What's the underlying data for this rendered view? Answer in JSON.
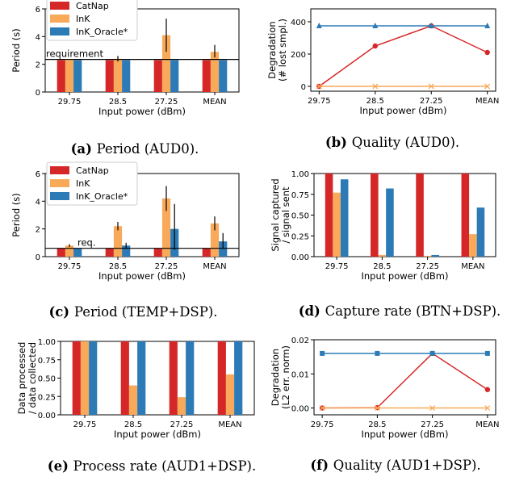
{
  "colors": {
    "catnap": "#d62728",
    "ink": "#f8a95a",
    "ink_oracle": "#2c7bb6",
    "axis": "#000000"
  },
  "chart_data": [
    {
      "id": "a",
      "type": "bar",
      "caption_label": "(a)",
      "caption_text": "Period (AUD0).",
      "categories": [
        "29.75",
        "28.5",
        "27.25",
        "MEAN"
      ],
      "xlabel": "Input power (dBm)",
      "ylabel": "Period (s)",
      "ylim": [
        0,
        6
      ],
      "yticks": [
        "0",
        "2",
        "4",
        "6"
      ],
      "series": [
        {
          "name": "CatNap",
          "key": "catnap",
          "values": [
            2.3,
            2.3,
            2.3,
            2.3
          ]
        },
        {
          "name": "InK",
          "key": "ink",
          "values": [
            2.3,
            2.4,
            4.1,
            2.9
          ],
          "err_low": [
            null,
            2.2,
            2.9,
            2.5
          ],
          "err_high": [
            null,
            2.6,
            5.3,
            3.4
          ]
        },
        {
          "name": "InK_Oracle*",
          "key": "ink_oracle",
          "values": [
            2.3,
            2.3,
            2.3,
            2.3
          ]
        }
      ],
      "hline": {
        "y": 2.35,
        "label": "requirement"
      },
      "legend": "top-left"
    },
    {
      "id": "b",
      "type": "line",
      "caption_label": "(b)",
      "caption_text": "Quality (AUD0).",
      "categories": [
        "29.75",
        "28.5",
        "27.25",
        "MEAN"
      ],
      "xlabel": "Input power (dBm)",
      "ylabel": "Degradation\n(# lost smpl.)",
      "ylim": [
        -30,
        480
      ],
      "yticks": [
        "0",
        "200",
        "400"
      ],
      "ytick_values": [
        0,
        200,
        400
      ],
      "series": [
        {
          "key": "catnap",
          "marker": "circle",
          "values": [
            0,
            250,
            375,
            210
          ]
        },
        {
          "key": "ink",
          "marker": "x",
          "values": [
            0,
            0,
            0,
            0
          ]
        },
        {
          "key": "ink_oracle",
          "marker": "triangle",
          "values": [
            375,
            375,
            375,
            375
          ]
        }
      ]
    },
    {
      "id": "c",
      "type": "bar",
      "caption_label": "(c)",
      "caption_text": "Period (TEMP+DSP).",
      "categories": [
        "29.75",
        "28.5",
        "27.25",
        "MEAN"
      ],
      "xlabel": "Input power (dBm)",
      "ylabel": "Period (s)",
      "ylim": [
        0,
        6
      ],
      "yticks": [
        "0",
        "2",
        "4",
        "6"
      ],
      "series": [
        {
          "name": "CatNap",
          "key": "catnap",
          "values": [
            0.6,
            0.6,
            0.6,
            0.6
          ]
        },
        {
          "name": "InK",
          "key": "ink",
          "values": [
            0.8,
            2.2,
            4.2,
            2.4
          ],
          "err_low": [
            0.7,
            1.9,
            3.3,
            1.9
          ],
          "err_high": [
            0.9,
            2.5,
            5.1,
            2.9
          ]
        },
        {
          "name": "InK_Oracle*",
          "key": "ink_oracle",
          "values": [
            0.6,
            0.8,
            2.0,
            1.1
          ],
          "err_low": [
            null,
            0.6,
            0.5,
            0.6
          ],
          "err_high": [
            null,
            1.0,
            3.8,
            1.7
          ]
        }
      ],
      "hline": {
        "y": 0.6,
        "label": "req."
      },
      "legend": "top-left"
    },
    {
      "id": "d",
      "type": "bar",
      "caption_label": "(d)",
      "caption_text": "Capture rate (BTN+DSP).",
      "categories": [
        "29.75",
        "28.5",
        "27.25",
        "MEAN"
      ],
      "xlabel": "Input power (dBm)",
      "ylabel": "Signal captured\n/ signal sent",
      "ylim": [
        0,
        1
      ],
      "yticks": [
        "0.00",
        "0.25",
        "0.50",
        "0.75",
        "1.00"
      ],
      "series": [
        {
          "key": "catnap",
          "values": [
            1.0,
            1.0,
            1.0,
            1.0
          ]
        },
        {
          "key": "ink",
          "values": [
            0.77,
            0.02,
            0.01,
            0.27
          ]
        },
        {
          "key": "ink_oracle",
          "values": [
            0.93,
            0.82,
            0.02,
            0.59
          ]
        }
      ]
    },
    {
      "id": "e",
      "type": "bar",
      "caption_label": "(e)",
      "caption_text": "Process rate (AUD1+DSP).",
      "categories": [
        "29.75",
        "28.5",
        "27.25",
        "MEAN"
      ],
      "xlabel": "Input power (dBm)",
      "ylabel": "Data processed\n/ data collected",
      "ylim": [
        0,
        1
      ],
      "yticks": [
        "0.00",
        "0.25",
        "0.50",
        "0.75",
        "1.00"
      ],
      "series": [
        {
          "key": "catnap",
          "values": [
            1.0,
            1.0,
            1.0,
            1.0
          ]
        },
        {
          "key": "ink",
          "values": [
            1.0,
            0.4,
            0.24,
            0.55
          ]
        },
        {
          "key": "ink_oracle",
          "values": [
            1.0,
            1.0,
            1.0,
            1.0
          ]
        }
      ]
    },
    {
      "id": "f",
      "type": "line",
      "caption_label": "(f)",
      "caption_text": "Quality (AUD1+DSP).",
      "categories": [
        "29.75",
        "28.5",
        "27.25",
        "MEAN"
      ],
      "xlabel": "Input power (dBm)",
      "ylabel": "Degradation\n(L2 err. norm)",
      "ylim": [
        -0.002,
        0.02
      ],
      "yticks": [
        "0.00",
        "0.01",
        "0.02"
      ],
      "ytick_values": [
        0,
        0.01,
        0.02
      ],
      "series": [
        {
          "key": "catnap",
          "marker": "circle",
          "values": [
            0.0,
            0.0001,
            0.016,
            0.0054
          ]
        },
        {
          "key": "ink",
          "marker": "x",
          "values": [
            0,
            0,
            0,
            0
          ]
        },
        {
          "key": "ink_oracle",
          "marker": "square",
          "values": [
            0.016,
            0.016,
            0.016,
            0.016
          ]
        }
      ]
    }
  ]
}
